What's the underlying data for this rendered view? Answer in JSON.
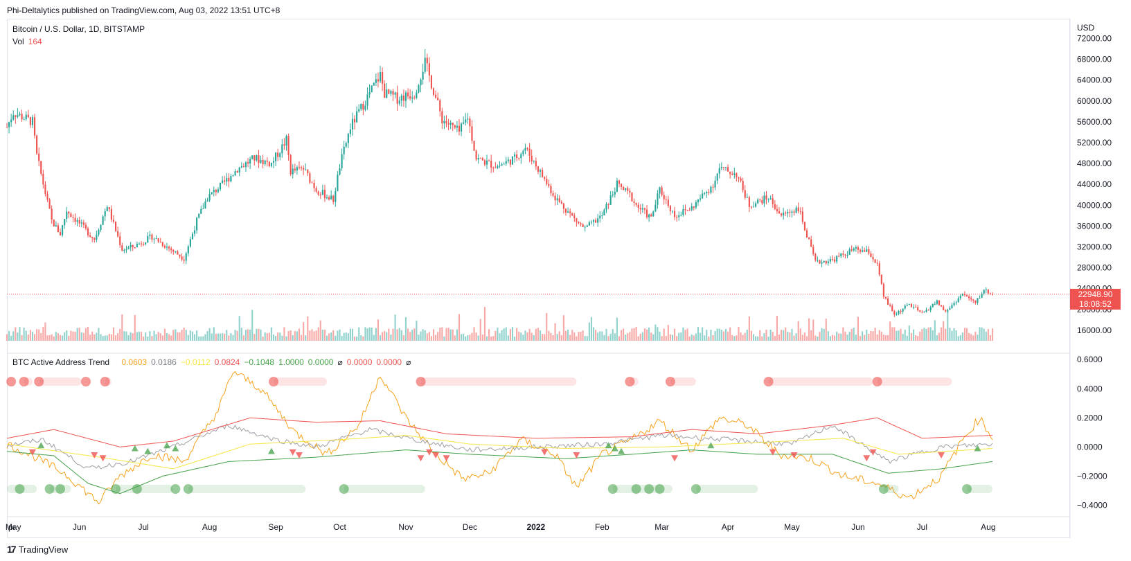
{
  "header": {
    "publisher_line": "Phi-Deltalytics published on TradingView.com, Aug 03, 2022 13:51 UTC+8"
  },
  "main_legend": {
    "symbol": "Bitcoin / U.S. Dollar, 1D, BITSTAMP",
    "vol_label": "Vol",
    "vol_value": "164"
  },
  "indicator_legend": {
    "name": "BTC Active Address Trend",
    "values": [
      {
        "text": "0.0603",
        "color": "#f7a21b"
      },
      {
        "text": "0.0186",
        "color": "#787b86"
      },
      {
        "text": "−0.0112",
        "color": "#f5e642"
      },
      {
        "text": "0.0824",
        "color": "#ef5350"
      },
      {
        "text": "−0.1048",
        "color": "#43a047"
      },
      {
        "text": "1.0000",
        "color": "#43a047"
      },
      {
        "text": "0.0000",
        "color": "#43a047"
      },
      {
        "text": "⌀",
        "color": "#131722"
      },
      {
        "text": "0.0000",
        "color": "#ef5350"
      },
      {
        "text": "0.0000",
        "color": "#ef5350"
      },
      {
        "text": "⌀",
        "color": "#131722"
      }
    ]
  },
  "price_axis": {
    "currency": "USD",
    "ticks": [
      "72000.00",
      "68000.00",
      "64000.00",
      "60000.00",
      "56000.00",
      "52000.00",
      "48000.00",
      "44000.00",
      "40000.00",
      "36000.00",
      "32000.00",
      "28000.00",
      "24000.00",
      "20000.00",
      "16000.00"
    ]
  },
  "indicator_axis": {
    "ticks": [
      "0.6000",
      "0.4000",
      "0.2000",
      "0.0000",
      "−0.2000",
      "−0.4000"
    ]
  },
  "time_axis": {
    "labels": [
      "pr",
      "May",
      "Jun",
      "Jul",
      "Aug",
      "Sep",
      "Oct",
      "Nov",
      "Dec",
      "2022",
      "Feb",
      "Mar",
      "Apr",
      "May",
      "Jun",
      "Jul",
      "Aug"
    ]
  },
  "last_price": {
    "value": "22948.90",
    "countdown": "18:08:52"
  },
  "footer": {
    "brand": "TradingView",
    "logo": "17"
  },
  "colors": {
    "up": "#26a69a",
    "down": "#ef5350",
    "orange": "#f7a21b",
    "gray": "#9e9ea6",
    "yellow": "#f5e642",
    "red": "#ef5350",
    "green": "#43a047"
  },
  "chart_data": [
    {
      "type": "candlestick",
      "title": "Bitcoin / U.S. Dollar, 1D, BITSTAMP",
      "ylabel": "USD",
      "ylim": [
        14000,
        73000
      ],
      "x_range": [
        "2021-04-28",
        "2022-08-03"
      ],
      "close_anchors": [
        [
          "2021-04-28",
          55000
        ],
        [
          "2021-05-01",
          57800
        ],
        [
          "2021-05-05",
          57000
        ],
        [
          "2021-05-10",
          56000
        ],
        [
          "2021-05-12",
          49500
        ],
        [
          "2021-05-19",
          37000
        ],
        [
          "2021-05-23",
          34500
        ],
        [
          "2021-05-26",
          39000
        ],
        [
          "2021-06-01",
          36500
        ],
        [
          "2021-06-08",
          33500
        ],
        [
          "2021-06-14",
          40000
        ],
        [
          "2021-06-21",
          31500
        ],
        [
          "2021-06-26",
          32000
        ],
        [
          "2021-07-05",
          34000
        ],
        [
          "2021-07-20",
          29800
        ],
        [
          "2021-07-26",
          37000
        ],
        [
          "2021-07-31",
          41500
        ],
        [
          "2021-08-07",
          44000
        ],
        [
          "2021-08-14",
          47000
        ],
        [
          "2021-08-22",
          49000
        ],
        [
          "2021-08-30",
          48000
        ],
        [
          "2021-09-06",
          52500
        ],
        [
          "2021-09-08",
          46500
        ],
        [
          "2021-09-14",
          47000
        ],
        [
          "2021-09-20",
          43000
        ],
        [
          "2021-09-28",
          41000
        ],
        [
          "2021-10-01",
          47500
        ],
        [
          "2021-10-06",
          55000
        ],
        [
          "2021-10-15",
          61500
        ],
        [
          "2021-10-20",
          65000
        ],
        [
          "2021-10-22",
          61500
        ],
        [
          "2021-10-28",
          60500
        ],
        [
          "2021-11-05",
          61500
        ],
        [
          "2021-11-10",
          67500
        ],
        [
          "2021-11-18",
          56500
        ],
        [
          "2021-11-26",
          54000
        ],
        [
          "2021-11-30",
          57000
        ],
        [
          "2021-12-04",
          49000
        ],
        [
          "2021-12-10",
          48000
        ],
        [
          "2021-12-14",
          47500
        ],
        [
          "2021-12-22",
          49000
        ],
        [
          "2021-12-27",
          51000
        ],
        [
          "2022-01-02",
          47000
        ],
        [
          "2022-01-10",
          41500
        ],
        [
          "2022-01-21",
          36500
        ],
        [
          "2022-01-24",
          35500
        ],
        [
          "2022-02-01",
          38000
        ],
        [
          "2022-02-08",
          44000
        ],
        [
          "2022-02-14",
          42000
        ],
        [
          "2022-02-17",
          40000
        ],
        [
          "2022-02-24",
          37500
        ],
        [
          "2022-02-28",
          43000
        ],
        [
          "2022-03-07",
          38000
        ],
        [
          "2022-03-15",
          39500
        ],
        [
          "2022-03-25",
          44000
        ],
        [
          "2022-03-28",
          47000
        ],
        [
          "2022-04-05",
          46000
        ],
        [
          "2022-04-11",
          40000
        ],
        [
          "2022-04-20",
          41500
        ],
        [
          "2022-04-26",
          38000
        ],
        [
          "2022-05-04",
          39500
        ],
        [
          "2022-05-07",
          35500
        ],
        [
          "2022-05-12",
          29000
        ],
        [
          "2022-05-20",
          29500
        ],
        [
          "2022-05-30",
          31500
        ],
        [
          "2022-06-06",
          31000
        ],
        [
          "2022-06-10",
          28500
        ],
        [
          "2022-06-13",
          22500
        ],
        [
          "2022-06-18",
          19000
        ],
        [
          "2022-06-25",
          21000
        ],
        [
          "2022-07-01",
          19200
        ],
        [
          "2022-07-08",
          21500
        ],
        [
          "2022-07-12",
          19500
        ],
        [
          "2022-07-20",
          23000
        ],
        [
          "2022-07-26",
          21200
        ],
        [
          "2022-07-30",
          23800
        ],
        [
          "2022-08-03",
          22948.9
        ]
      ]
    },
    {
      "type": "bar",
      "title": "Vol",
      "last_value": 164
    },
    {
      "type": "line",
      "title": "BTC Active Address Trend",
      "ylim": [
        -0.45,
        0.62
      ],
      "series": [
        {
          "color": "#f7a21b",
          "points": [
            [
              "2021-04-28",
              0.02
            ],
            [
              "2021-05-10",
              -0.06
            ],
            [
              "2021-05-25",
              -0.18
            ],
            [
              "2021-06-10",
              -0.38
            ],
            [
              "2021-06-20",
              -0.2
            ],
            [
              "2021-07-05",
              -0.05
            ],
            [
              "2021-07-20",
              -0.1
            ],
            [
              "2021-08-05",
              0.25
            ],
            [
              "2021-08-12",
              0.52
            ],
            [
              "2021-08-25",
              0.4
            ],
            [
              "2021-09-10",
              0.1
            ],
            [
              "2021-09-25",
              -0.05
            ],
            [
              "2021-10-10",
              0.15
            ],
            [
              "2021-10-20",
              0.5
            ],
            [
              "2021-11-01",
              0.2
            ],
            [
              "2021-11-15",
              -0.05
            ],
            [
              "2021-11-28",
              -0.22
            ],
            [
              "2021-12-10",
              -0.18
            ],
            [
              "2021-12-25",
              0.05
            ],
            [
              "2022-01-10",
              -0.05
            ],
            [
              "2022-01-20",
              -0.28
            ],
            [
              "2022-02-01",
              -0.05
            ],
            [
              "2022-02-15",
              0.05
            ],
            [
              "2022-02-28",
              0.18
            ],
            [
              "2022-03-15",
              -0.02
            ],
            [
              "2022-03-28",
              0.2
            ],
            [
              "2022-04-10",
              0.15
            ],
            [
              "2022-04-25",
              -0.05
            ],
            [
              "2022-05-10",
              -0.08
            ],
            [
              "2022-05-25",
              -0.2
            ],
            [
              "2022-06-10",
              -0.25
            ],
            [
              "2022-06-25",
              -0.35
            ],
            [
              "2022-07-10",
              -0.2
            ],
            [
              "2022-07-20",
              0.05
            ],
            [
              "2022-07-28",
              0.2
            ],
            [
              "2022-08-03",
              0.06
            ]
          ]
        },
        {
          "color": "#9e9ea6",
          "points": [
            [
              "2021-04-28",
              0.01
            ],
            [
              "2021-05-15",
              0.05
            ],
            [
              "2021-06-05",
              -0.15
            ],
            [
              "2021-06-25",
              -0.1
            ],
            [
              "2021-07-15",
              0.0
            ],
            [
              "2021-08-10",
              0.15
            ],
            [
              "2021-09-01",
              0.05
            ],
            [
              "2021-09-20",
              0.0
            ],
            [
              "2021-10-15",
              0.12
            ],
            [
              "2021-11-05",
              0.05
            ],
            [
              "2021-12-01",
              -0.02
            ],
            [
              "2022-01-01",
              0.0
            ],
            [
              "2022-02-01",
              0.02
            ],
            [
              "2022-03-01",
              0.08
            ],
            [
              "2022-04-01",
              0.05
            ],
            [
              "2022-05-01",
              0.02
            ],
            [
              "2022-05-20",
              0.15
            ],
            [
              "2022-06-15",
              -0.1
            ],
            [
              "2022-07-10",
              0.0
            ],
            [
              "2022-08-03",
              0.02
            ]
          ]
        },
        {
          "color": "#f5e642",
          "points": [
            [
              "2021-04-28",
              0.02
            ],
            [
              "2021-06-15",
              -0.08
            ],
            [
              "2021-07-15",
              -0.15
            ],
            [
              "2021-08-20",
              0.02
            ],
            [
              "2021-10-01",
              0.05
            ],
            [
              "2021-11-01",
              0.08
            ],
            [
              "2021-12-01",
              0.02
            ],
            [
              "2022-01-15",
              -0.01
            ],
            [
              "2022-03-01",
              0.0
            ],
            [
              "2022-04-15",
              0.03
            ],
            [
              "2022-05-25",
              0.06
            ],
            [
              "2022-06-20",
              -0.05
            ],
            [
              "2022-08-03",
              -0.01
            ]
          ]
        },
        {
          "color": "#ef5350",
          "points": [
            [
              "2021-04-28",
              0.06
            ],
            [
              "2021-05-20",
              0.12
            ],
            [
              "2021-06-20",
              0.0
            ],
            [
              "2021-07-15",
              0.04
            ],
            [
              "2021-08-20",
              0.2
            ],
            [
              "2021-09-20",
              0.17
            ],
            [
              "2021-10-20",
              0.18
            ],
            [
              "2021-11-20",
              0.09
            ],
            [
              "2022-01-01",
              0.06
            ],
            [
              "2022-02-15",
              0.07
            ],
            [
              "2022-03-15",
              0.12
            ],
            [
              "2022-04-15",
              0.09
            ],
            [
              "2022-05-20",
              0.15
            ],
            [
              "2022-06-10",
              0.2
            ],
            [
              "2022-07-01",
              0.06
            ],
            [
              "2022-08-03",
              0.08
            ]
          ]
        },
        {
          "color": "#43a047",
          "points": [
            [
              "2021-04-28",
              -0.03
            ],
            [
              "2021-05-20",
              -0.06
            ],
            [
              "2021-06-05",
              -0.25
            ],
            [
              "2021-06-20",
              -0.32
            ],
            [
              "2021-07-10",
              -0.2
            ],
            [
              "2021-08-10",
              -0.1
            ],
            [
              "2021-09-20",
              -0.07
            ],
            [
              "2021-11-01",
              -0.02
            ],
            [
              "2021-12-01",
              -0.05
            ],
            [
              "2022-01-15",
              -0.08
            ],
            [
              "2022-02-15",
              -0.05
            ],
            [
              "2022-03-15",
              -0.02
            ],
            [
              "2022-04-15",
              -0.05
            ],
            [
              "2022-05-20",
              -0.05
            ],
            [
              "2022-06-15",
              -0.18
            ],
            [
              "2022-07-10",
              -0.15
            ],
            [
              "2022-08-03",
              -0.1
            ]
          ]
        }
      ]
    }
  ]
}
